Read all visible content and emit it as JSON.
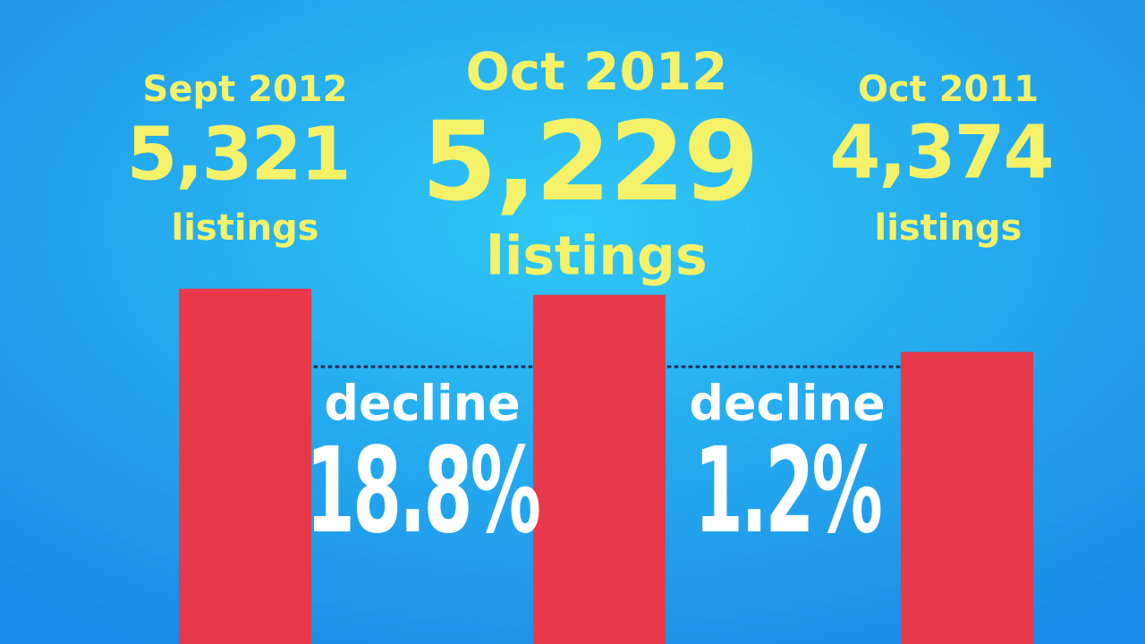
{
  "chart_data": {
    "type": "bar",
    "categories": [
      "Sept 2012",
      "Oct 2012",
      "Oct 2011"
    ],
    "values": [
      5321,
      5229,
      4374
    ],
    "value_labels": [
      "5,321",
      "5,229",
      "4,374"
    ],
    "unit_label": "listings",
    "color": "#e8394a",
    "ylim": [
      0,
      5800
    ],
    "annotations": [
      {
        "text": "decline",
        "value": "18.8%"
      },
      {
        "text": "decline",
        "value": "1.2%"
      }
    ]
  }
}
